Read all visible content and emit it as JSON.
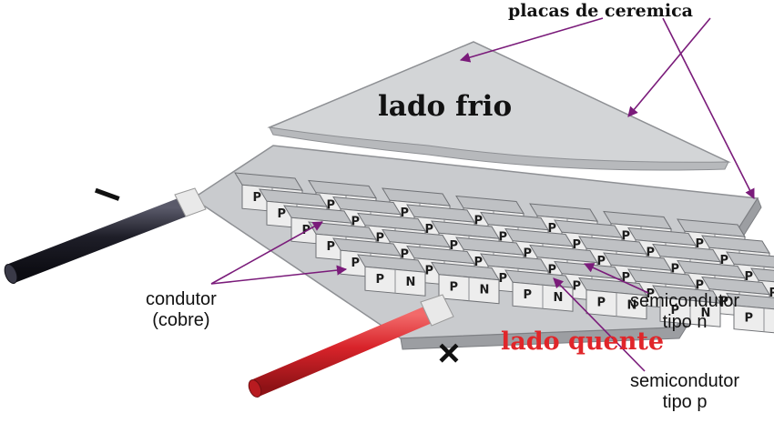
{
  "labels": {
    "placas": "placas de ceremica",
    "lado_frio": "lado frio",
    "lado_quente": "lado quente",
    "condutor_line1": "condutor",
    "condutor_line2": "(cobre)",
    "semi_n_line1": "semicondutor",
    "semi_n_line2": "tipo n",
    "semi_p_line1": "semicondutor",
    "semi_p_line2": "tipo p",
    "minus": "−",
    "plus": "+"
  },
  "colors": {
    "arrow": "#7a1b7a",
    "hot_text": "#e0262a",
    "wire_negative": "#2b2b3a",
    "wire_positive": "#d8232a",
    "ceramic": "#d2d4d6",
    "block_top": "#bfc1c4",
    "block_front": "#ededed"
  },
  "element_letters": [
    "P",
    "N"
  ]
}
